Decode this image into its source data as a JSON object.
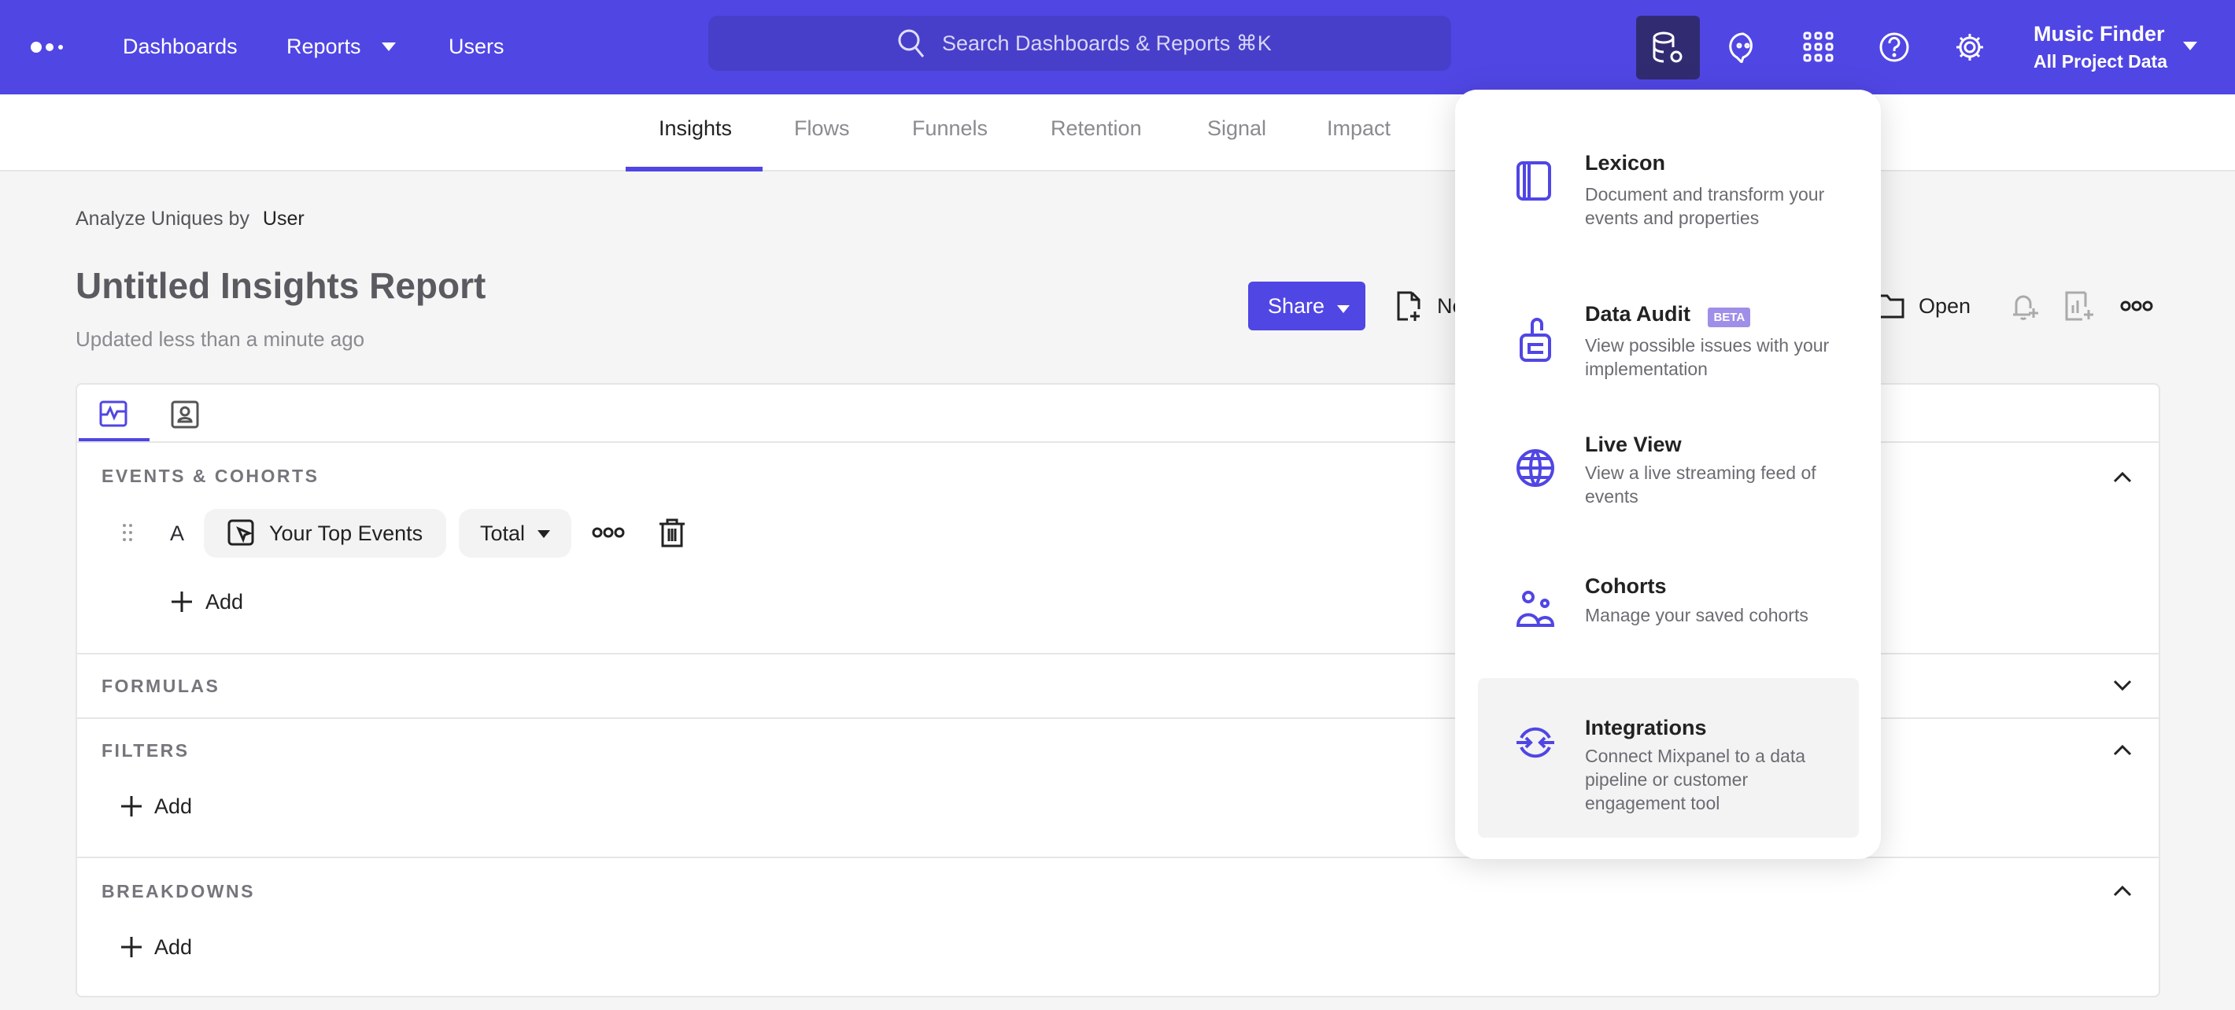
{
  "topbar": {
    "nav": [
      {
        "label": "Dashboards"
      },
      {
        "label": "Reports"
      },
      {
        "label": "Users"
      }
    ],
    "search_placeholder": "Search Dashboards & Reports ⌘K",
    "project_name": "Music Finder",
    "project_scope": "All Project Data",
    "icons": [
      "data-management-icon",
      "chat-icon",
      "apps-grid-icon",
      "help-icon",
      "settings-icon"
    ],
    "brand_color": "#5046e4"
  },
  "subnav": {
    "tabs": [
      {
        "label": "Insights",
        "active": true
      },
      {
        "label": "Flows"
      },
      {
        "label": "Funnels"
      },
      {
        "label": "Retention"
      },
      {
        "label": "Signal"
      },
      {
        "label": "Impact"
      }
    ]
  },
  "report": {
    "analyze_prefix": "Analyze Uniques by",
    "analyze_value": "User",
    "title": "Untitled Insights Report",
    "updated": "Updated less than a minute ago",
    "share_label": "Share",
    "new_label": "New",
    "open_label": "Open"
  },
  "builder": {
    "events_label": "EVENTS & COHORTS",
    "event_row": {
      "letter": "A",
      "event": "Your Top Events",
      "measure": "Total"
    },
    "add_label": "Add",
    "formulas_label": "FORMULAS",
    "filters_label": "FILTERS",
    "breakdowns_label": "BREAKDOWNS"
  },
  "dropdown": {
    "items": [
      {
        "title": "Lexicon",
        "desc": "Document and transform your events and properties",
        "icon": "book-icon"
      },
      {
        "title": "Data Audit",
        "badge": "BETA",
        "desc": "View possible issues with your implementation",
        "icon": "lock-audit-icon"
      },
      {
        "title": "Live View",
        "desc": "View a live streaming feed of events",
        "icon": "globe-icon"
      },
      {
        "title": "Cohorts",
        "desc": "Manage your saved cohorts",
        "icon": "users-icon"
      },
      {
        "title": "Integrations",
        "desc": "Connect Mixpanel to a data pipeline or customer engagement tool",
        "icon": "integrations-icon",
        "highlighted": true
      }
    ]
  }
}
